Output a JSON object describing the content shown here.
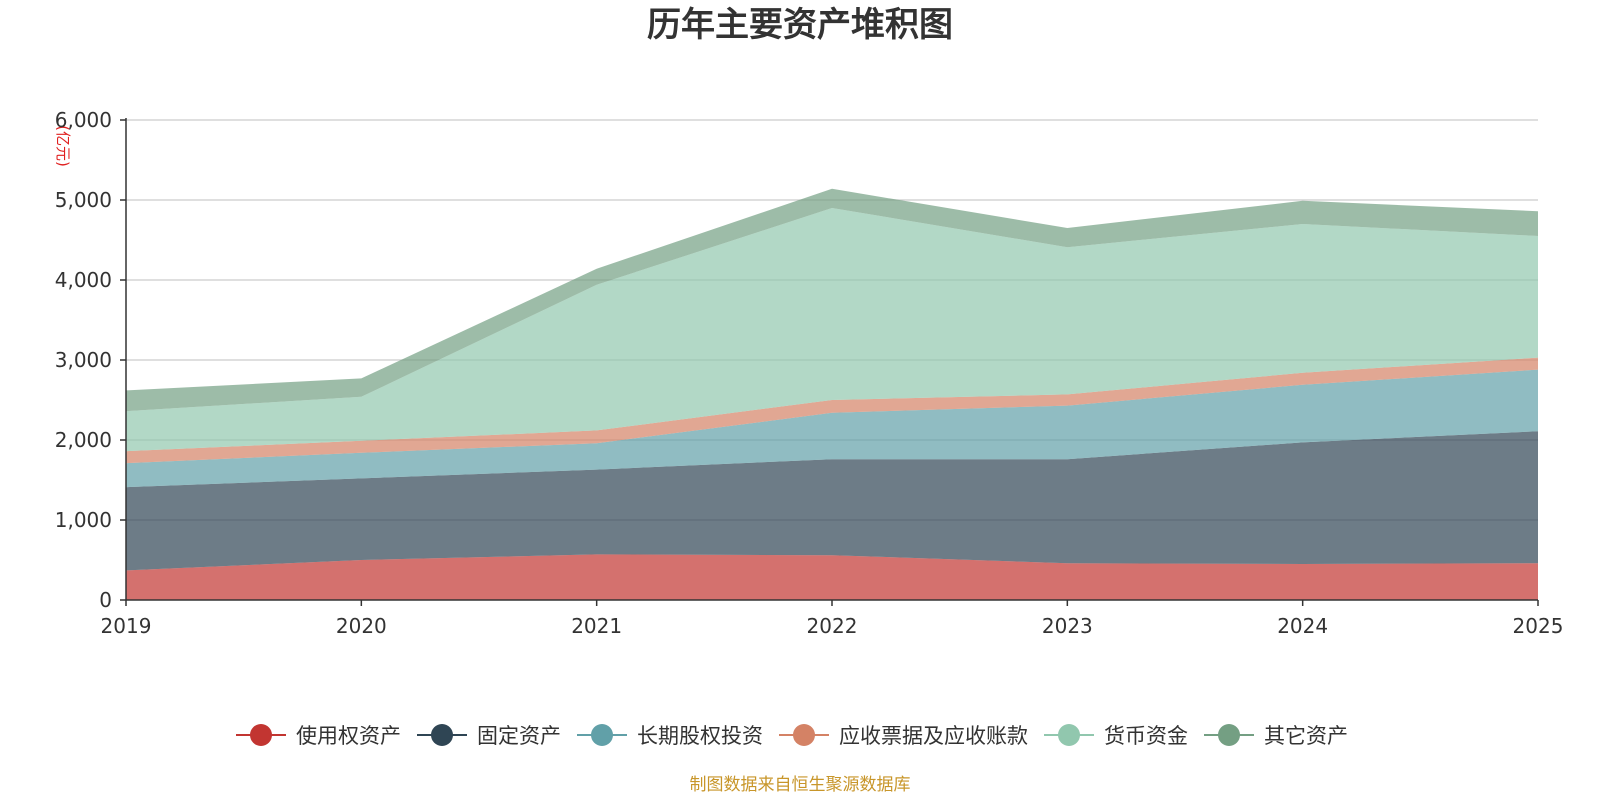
{
  "chart_data": {
    "type": "area",
    "stacked": true,
    "title": "历年主要资产堆积图",
    "unit_label": "(亿元)",
    "source": "制图数据来自恒生聚源数据库",
    "categories": [
      "2019",
      "2020",
      "2021",
      "2022",
      "2023",
      "2024",
      "2025"
    ],
    "ylim": [
      0,
      6000
    ],
    "yticks": [
      0,
      1000,
      2000,
      3000,
      4000,
      5000,
      6000
    ],
    "ytick_labels": [
      "0",
      "1,000",
      "2,000",
      "3,000",
      "4,000",
      "5,000",
      "6,000"
    ],
    "legend_position": "bottom",
    "grid": true,
    "series": [
      {
        "name": "使用权资产",
        "color": "#c23531",
        "values": [
          370,
          500,
          570,
          560,
          460,
          450,
          460
        ]
      },
      {
        "name": "固定资产",
        "color": "#2f4554",
        "values": [
          1040,
          1020,
          1060,
          1200,
          1300,
          1520,
          1650
        ]
      },
      {
        "name": "长期股权投资",
        "color": "#61a0a8",
        "values": [
          300,
          320,
          330,
          580,
          670,
          720,
          770
        ]
      },
      {
        "name": "应收票据及应收账款",
        "color": "#d48265",
        "values": [
          150,
          150,
          160,
          160,
          140,
          150,
          150
        ]
      },
      {
        "name": "货币资金",
        "color": "#91c7ae",
        "values": [
          500,
          550,
          1820,
          2400,
          1840,
          1860,
          1520
        ]
      },
      {
        "name": "其它资产",
        "color": "#749f83",
        "values": [
          260,
          230,
          200,
          240,
          240,
          290,
          310
        ]
      }
    ]
  }
}
